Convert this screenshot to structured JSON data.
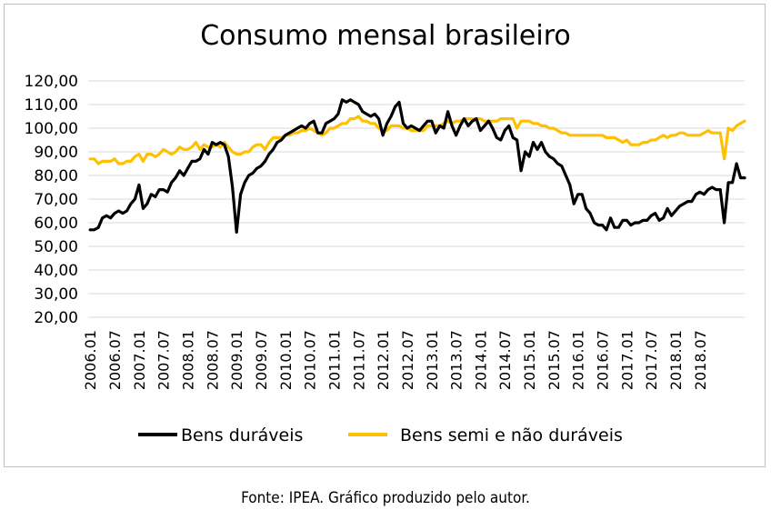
{
  "chart_data": {
    "type": "line",
    "title": "Consumo mensal brasileiro",
    "xlabel": "",
    "ylabel": "",
    "ylim": [
      20,
      120
    ],
    "y_ticks": [
      "20,00",
      "30,00",
      "40,00",
      "50,00",
      "60,00",
      "70,00",
      "80,00",
      "90,00",
      "100,00",
      "110,00",
      "120,00"
    ],
    "x_tick_labels": [
      "2006.01",
      "2006.07",
      "2007.01",
      "2007.07",
      "2008.01",
      "2008.07",
      "2009.01",
      "2009.07",
      "2010.01",
      "2010.07",
      "2011.01",
      "2011.07",
      "2012.01",
      "2012.07",
      "2013.01",
      "2013.07",
      "2014.01",
      "2014.07",
      "2015.01",
      "2015.07",
      "2016.01",
      "2016.07",
      "2017.01",
      "2017.07",
      "2018.01",
      "2018.07"
    ],
    "x_start": "2006.01",
    "x_end": "2018.12",
    "grid": true,
    "legend_position": "bottom",
    "series": [
      {
        "name": "Bens duráveis",
        "color": "#000000",
        "values": [
          57,
          57,
          58,
          62,
          63,
          62,
          64,
          65,
          64,
          65,
          68,
          70,
          76,
          66,
          68,
          72,
          71,
          74,
          74,
          73,
          77,
          79,
          82,
          80,
          83,
          86,
          86,
          87,
          91,
          89,
          94,
          93,
          94,
          93,
          88,
          75,
          56,
          72,
          77,
          80,
          81,
          83,
          84,
          86,
          89,
          91,
          94,
          95,
          97,
          98,
          99,
          100,
          101,
          100,
          102,
          103,
          98,
          98,
          102,
          103,
          104,
          106,
          112,
          111,
          112,
          111,
          110,
          107,
          106,
          105,
          106,
          104,
          97,
          102,
          105,
          109,
          111,
          102,
          100,
          101,
          100,
          99,
          101,
          103,
          103,
          98,
          101,
          100,
          107,
          101,
          97,
          101,
          104,
          101,
          103,
          104,
          99,
          101,
          103,
          100,
          96,
          95,
          99,
          101,
          96,
          95,
          82,
          90,
          88,
          94,
          91,
          94,
          90,
          88,
          87,
          85,
          84,
          80,
          76,
          68,
          72,
          72,
          66,
          64,
          60,
          59,
          59,
          57,
          62,
          58,
          58,
          61,
          61,
          59,
          60,
          60,
          61,
          61,
          63,
          64,
          61,
          62,
          66,
          63,
          65,
          67,
          68,
          69,
          69,
          72,
          73,
          72,
          74,
          75,
          74,
          74,
          60,
          77,
          77,
          85,
          79,
          79
        ]
      },
      {
        "name": "Bens semi e não duráveis",
        "color": "#FFC000",
        "values": [
          87,
          87,
          85,
          86,
          86,
          86,
          87,
          85,
          85,
          86,
          86,
          88,
          89,
          86,
          89,
          89,
          88,
          89,
          91,
          90,
          89,
          90,
          92,
          91,
          91,
          92,
          94,
          91,
          93,
          92,
          92,
          93,
          92,
          94,
          92,
          90,
          89,
          89,
          90,
          90,
          92,
          93,
          93,
          91,
          94,
          96,
          96,
          96,
          97,
          97,
          98,
          98,
          99,
          99,
          100,
          99,
          98,
          97,
          98,
          100,
          100,
          101,
          102,
          102,
          104,
          104,
          105,
          103,
          103,
          102,
          102,
          100,
          99,
          99,
          101,
          101,
          101,
          100,
          100,
          99,
          99,
          99,
          99,
          101,
          101,
          101,
          101,
          102,
          103,
          102,
          103,
          103,
          104,
          104,
          104,
          104,
          104,
          103,
          103,
          103,
          103,
          104,
          104,
          104,
          104,
          100,
          103,
          103,
          103,
          102,
          102,
          101,
          101,
          100,
          100,
          99,
          98,
          98,
          97,
          97,
          97,
          97,
          97,
          97,
          97,
          97,
          97,
          96,
          96,
          96,
          95,
          94,
          95,
          93,
          93,
          93,
          94,
          94,
          95,
          95,
          96,
          97,
          96,
          97,
          97,
          98,
          98,
          97,
          97,
          97,
          97,
          98,
          99,
          98,
          98,
          98,
          87,
          100,
          99,
          101,
          102,
          103
        ]
      }
    ],
    "caption": "Fonte: IPEA. Gráfico produzido pelo autor."
  }
}
